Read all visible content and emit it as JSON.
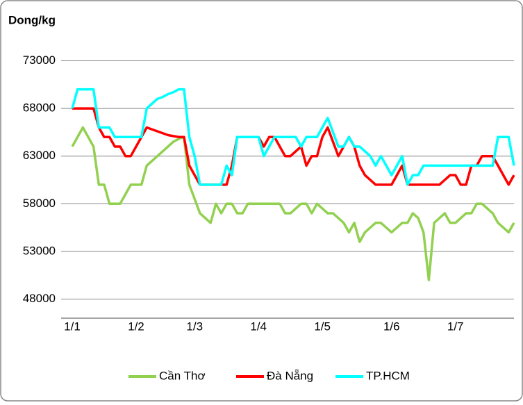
{
  "chart_data": {
    "type": "line",
    "title": "Dong/kg",
    "categories": [
      "1/1",
      null,
      null,
      null,
      null,
      null,
      null,
      null,
      null,
      null,
      null,
      null,
      "1/2",
      null,
      null,
      null,
      null,
      null,
      null,
      null,
      null,
      null,
      null,
      "1/3",
      null,
      null,
      null,
      null,
      null,
      null,
      null,
      null,
      null,
      null,
      null,
      "1/4",
      null,
      null,
      null,
      null,
      null,
      null,
      null,
      null,
      null,
      null,
      null,
      "1/5",
      null,
      null,
      null,
      null,
      null,
      null,
      null,
      null,
      null,
      null,
      null,
      null,
      "1/6",
      null,
      null,
      null,
      null,
      null,
      null,
      null,
      null,
      null,
      null,
      null,
      "1/7",
      null,
      null,
      null,
      null,
      null,
      null,
      null,
      null,
      null,
      null,
      null
    ],
    "series": [
      {
        "name": "Cần Thơ",
        "color": "#92d050",
        "values": [
          64000,
          65000,
          66000,
          65000,
          64000,
          60000,
          60000,
          58000,
          58000,
          58000,
          59000,
          60000,
          60000,
          60000,
          62000,
          62500,
          63000,
          63500,
          64000,
          64500,
          64800,
          65000,
          60000,
          58500,
          57000,
          56500,
          56000,
          58000,
          57000,
          58000,
          58000,
          57000,
          57000,
          58000,
          58000,
          58000,
          58000,
          58000,
          58000,
          58000,
          57000,
          57000,
          57500,
          58000,
          58000,
          57000,
          58000,
          57500,
          57000,
          57000,
          56500,
          56000,
          55000,
          56000,
          54000,
          55000,
          55500,
          56000,
          56000,
          55500,
          55000,
          55500,
          56000,
          56000,
          57000,
          56500,
          55000,
          50000,
          56000,
          56500,
          57000,
          56000,
          56000,
          56500,
          57000,
          57000,
          58000,
          58000,
          57500,
          57000,
          56000,
          55500,
          55000,
          56000
        ]
      },
      {
        "name": "Đà Nẵng",
        "color": "#ff0000",
        "values": [
          68000,
          68000,
          68000,
          68000,
          68000,
          66000,
          65000,
          65000,
          64000,
          64000,
          63000,
          63000,
          64000,
          65000,
          66000,
          65800,
          65600,
          65400,
          65200,
          65100,
          65000,
          65000,
          62000,
          61000,
          60000,
          60000,
          60000,
          60000,
          60000,
          60000,
          62000,
          65000,
          65000,
          65000,
          65000,
          65000,
          64000,
          65000,
          65000,
          64000,
          63000,
          63000,
          63500,
          64000,
          62000,
          63000,
          63000,
          65000,
          66000,
          64500,
          63000,
          64000,
          65000,
          64000,
          62000,
          61000,
          60500,
          60000,
          60000,
          60000,
          60000,
          61000,
          62000,
          60000,
          60000,
          60000,
          60000,
          60000,
          60000,
          60000,
          60500,
          61000,
          61000,
          60000,
          60000,
          62000,
          62000,
          63000,
          63000,
          63000,
          62000,
          61000,
          60000,
          61000
        ]
      },
      {
        "name": "TP.HCM",
        "color": "#00ffff",
        "values": [
          68000,
          70000,
          70000,
          70000,
          70000,
          66000,
          66000,
          66000,
          65000,
          65000,
          65000,
          65000,
          65000,
          65000,
          68000,
          68500,
          69000,
          69200,
          69500,
          69700,
          70000,
          70000,
          65000,
          63000,
          60000,
          60000,
          60000,
          60000,
          60000,
          62000,
          61000,
          65000,
          65000,
          65000,
          65000,
          65000,
          63000,
          64000,
          65000,
          65000,
          65000,
          65000,
          65000,
          64000,
          65000,
          65000,
          65000,
          66000,
          67000,
          65500,
          64000,
          64000,
          65000,
          64000,
          64000,
          63500,
          63000,
          62000,
          63000,
          62000,
          61000,
          62000,
          63000,
          60000,
          61000,
          61000,
          62000,
          62000,
          62000,
          62000,
          62000,
          62000,
          62000,
          62000,
          62000,
          62000,
          62000,
          62000,
          62000,
          62000,
          65000,
          65000,
          65000,
          62000
        ]
      }
    ],
    "ylim": [
      46000,
      75000
    ],
    "yticks": [
      48000,
      53000,
      58000,
      63000,
      68000,
      73000
    ],
    "grid": true,
    "legend": "bottom"
  }
}
